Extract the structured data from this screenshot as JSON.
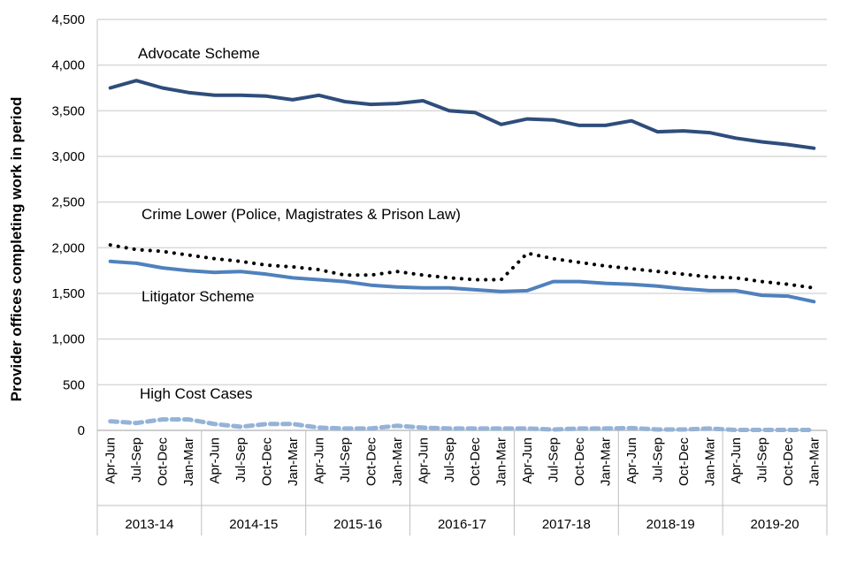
{
  "chart_data": {
    "type": "line",
    "title": "",
    "ylabel": "Provider offices completing work in period",
    "xlabel": "",
    "ylim": [
      0,
      4500
    ],
    "yticks": [
      0,
      500,
      1000,
      1500,
      2000,
      2500,
      3000,
      3500,
      4000,
      4500
    ],
    "ytick_labels": [
      "0",
      "500",
      "1,000",
      "1,500",
      "2,000",
      "2,500",
      "3,000",
      "3,500",
      "4,000",
      "4,500"
    ],
    "grid": "horizontal",
    "legend": "inline labels",
    "quarters": [
      "Apr-Jun",
      "Jul-Sep",
      "Oct-Dec",
      "Jan-Mar"
    ],
    "years": [
      "2013-14",
      "2014-15",
      "2015-16",
      "2016-17",
      "2017-18",
      "2018-19",
      "2019-20"
    ],
    "series": [
      {
        "name": "Advocate Scheme",
        "color": "#2E4D7B",
        "style": "solid",
        "values": [
          3750,
          3830,
          3750,
          3700,
          3670,
          3670,
          3660,
          3620,
          3670,
          3600,
          3570,
          3580,
          3610,
          3500,
          3480,
          3350,
          3410,
          3400,
          3340,
          3340,
          3390,
          3270,
          3280,
          3260,
          3200,
          3160,
          3130,
          3090
        ]
      },
      {
        "name": "Crime Lower (Police, Magistrates & Prison Law)",
        "color": "#000000",
        "style": "dotted",
        "values": [
          2030,
          1980,
          1960,
          1920,
          1880,
          1850,
          1810,
          1790,
          1760,
          1700,
          1700,
          1740,
          1700,
          1670,
          1650,
          1650,
          1940,
          1880,
          1840,
          1800,
          1770,
          1740,
          1710,
          1680,
          1670,
          1630,
          1600,
          1560
        ]
      },
      {
        "name": "Litigator Scheme",
        "color": "#4F81BD",
        "style": "solid",
        "values": [
          1850,
          1830,
          1780,
          1750,
          1730,
          1740,
          1710,
          1670,
          1650,
          1630,
          1590,
          1570,
          1560,
          1560,
          1540,
          1520,
          1530,
          1630,
          1630,
          1610,
          1600,
          1580,
          1550,
          1530,
          1530,
          1480,
          1470,
          1410
        ]
      },
      {
        "name": "High Cost Cases",
        "color": "#95B3D7",
        "style": "dashed",
        "values": [
          100,
          80,
          120,
          120,
          70,
          40,
          70,
          70,
          30,
          20,
          20,
          50,
          30,
          20,
          20,
          20,
          20,
          10,
          20,
          20,
          25,
          10,
          10,
          20,
          5,
          5,
          5,
          5
        ]
      }
    ]
  }
}
